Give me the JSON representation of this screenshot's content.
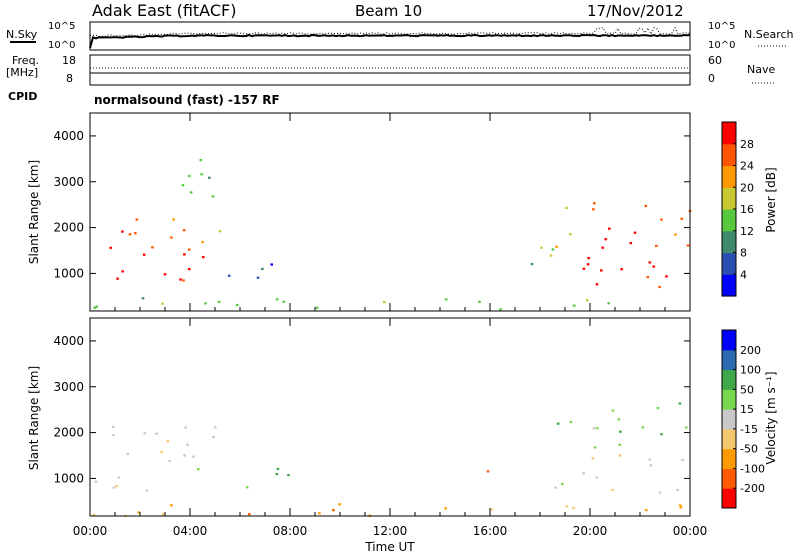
{
  "header": {
    "station": "Adak East (fitACF)",
    "beam": "Beam 10",
    "date": "17/Nov/2012"
  },
  "status_panels": {
    "nsky_label": "N.Sky",
    "nsearch_label": "N.Search",
    "noise_ticks_left": [
      "10^5",
      "10^0"
    ],
    "noise_ticks_right": [
      "10^5",
      "10^0"
    ],
    "freq_label_1": "Freq.",
    "freq_label_2": "[MHz]",
    "freq_ticks": [
      "18",
      "8"
    ],
    "nave_label": "Nave",
    "nave_ticks": [
      "60",
      "0"
    ],
    "cpid_label": "CPID",
    "cpid_text": "normalsound (fast) -157 RF"
  },
  "chart_data": [
    {
      "type": "heatmap",
      "panel": "power",
      "ylabel": "Slant Range [km]",
      "ylim": [
        180,
        4500
      ],
      "yticks": [
        "1000",
        "2000",
        "3000",
        "4000"
      ],
      "colorbar_label": "Power [dB]",
      "colorbar_ticks": [
        "4",
        "8",
        "12",
        "16",
        "20",
        "24",
        "28"
      ],
      "colors": [
        "#0000ff",
        "#2a4fb0",
        "#3f8a6a",
        "#55c83e",
        "#c8c832",
        "#ff9900",
        "#ff5500",
        "#ff0000"
      ],
      "regions": [
        {
          "t": [
            0.0,
            4.5
          ],
          "r": [
            700,
            1700
          ],
          "level": 7
        },
        {
          "t": [
            0.5,
            3.8
          ],
          "r": [
            1500,
            2500
          ],
          "level": 6
        },
        {
          "t": [
            4.2,
            5.2
          ],
          "r": [
            1600,
            2400
          ],
          "level": 5
        },
        {
          "t": [
            5.5,
            8.3
          ],
          "r": [
            800,
            1400
          ],
          "level": 1
        },
        {
          "t": [
            2.0,
            5.0
          ],
          "r": [
            2500,
            3500
          ],
          "level": 3
        },
        {
          "t": [
            0.0,
            24.0
          ],
          "r": [
            200,
            500
          ],
          "level": 3
        },
        {
          "t": [
            15.6,
            18.5
          ],
          "r": [
            1150,
            1300
          ],
          "level": 1
        },
        {
          "t": [
            17.8,
            19.5
          ],
          "r": [
            1400,
            2900
          ],
          "level": 4
        },
        {
          "t": [
            18.5,
            24.0
          ],
          "r": [
            700,
            1600
          ],
          "level": 7
        },
        {
          "t": [
            18.5,
            24.0
          ],
          "r": [
            1600,
            2600
          ],
          "level": 6
        }
      ]
    },
    {
      "type": "heatmap",
      "panel": "velocity",
      "xlabel": "Time UT",
      "ylabel": "Slant Range [km]",
      "ylim": [
        180,
        4500
      ],
      "yticks": [
        "1000",
        "2000",
        "3000",
        "4000"
      ],
      "xticks": [
        "00:00",
        "04:00",
        "08:00",
        "12:00",
        "16:00",
        "20:00",
        "00:00"
      ],
      "xlim": [
        0,
        24
      ],
      "colorbar_label": "Velocity [m s⁻¹]",
      "colorbar_ticks": [
        "-200",
        "-100",
        "-50",
        "-15",
        "15",
        "50",
        "100",
        "200"
      ],
      "colors": [
        "#ff0000",
        "#ff5a00",
        "#ff9a00",
        "#f5c870",
        "#c8c8c8",
        "#78d850",
        "#3fa84a",
        "#2a6ab0",
        "#0000ff"
      ],
      "regions": [
        {
          "t": [
            0.0,
            4.5
          ],
          "r": [
            700,
            1700
          ],
          "level": 4
        },
        {
          "t": [
            0.5,
            3.8
          ],
          "r": [
            1500,
            2300
          ],
          "level": 4
        },
        {
          "t": [
            3.5,
            5.0
          ],
          "r": [
            1600,
            2400
          ],
          "level": 4
        },
        {
          "t": [
            5.5,
            8.3
          ],
          "r": [
            800,
            1400
          ],
          "level": 6
        },
        {
          "t": [
            0.0,
            24.0
          ],
          "r": [
            200,
            500
          ],
          "level": 2
        },
        {
          "t": [
            15.6,
            18.5
          ],
          "r": [
            1150,
            1300
          ],
          "level": 2
        },
        {
          "t": [
            18.5,
            24.0
          ],
          "r": [
            700,
            1600
          ],
          "level": 4
        },
        {
          "t": [
            18.5,
            24.0
          ],
          "r": [
            1600,
            2700
          ],
          "level": 5
        }
      ]
    }
  ]
}
